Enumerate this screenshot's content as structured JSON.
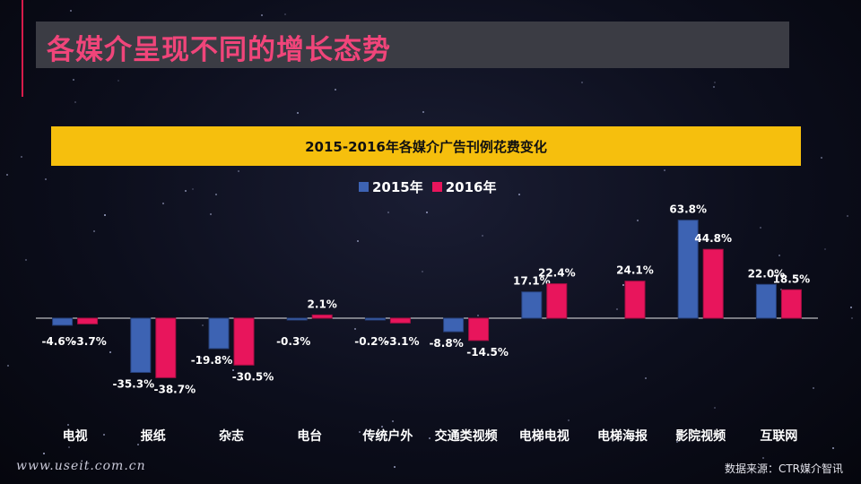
{
  "slide": {
    "title": "各媒介呈现不同的增长态势",
    "watermark": "www.useit.com.cn",
    "source": "数据来源：CTR媒介智讯"
  },
  "colors": {
    "accent": "#f0457a",
    "banner": "#f6bf0d",
    "series_2015": "#3d63b3",
    "series_2016": "#e8155c"
  },
  "chart_data": {
    "type": "bar",
    "title": "2015-2016年各媒介广告刊例花费变化",
    "xlabel": "",
    "ylabel": "",
    "ylim": [
      -40,
      65
    ],
    "grid": false,
    "legend": "top-center",
    "categories": [
      "电视",
      "报纸",
      "杂志",
      "电台",
      "传统户外",
      "交通类视频",
      "电梯电视",
      "电梯海报",
      "影院视频",
      "互联网"
    ],
    "series": [
      {
        "name": "2015年",
        "values": [
          -4.6,
          -35.3,
          -19.8,
          -0.3,
          -0.2,
          -8.8,
          17.1,
          null,
          63.8,
          22.0
        ],
        "labels": [
          "-4.6%",
          "-35.3%",
          "-19.8%",
          "-0.3%",
          "-0.2%",
          "-8.8%",
          "17.1%",
          null,
          "63.8%",
          "22.0%"
        ]
      },
      {
        "name": "2016年",
        "values": [
          -3.7,
          -38.7,
          -30.5,
          2.1,
          -3.1,
          -14.5,
          22.4,
          24.1,
          44.8,
          18.5
        ],
        "labels": [
          "-3.7%",
          "-38.7%",
          "-30.5%",
          "2.1%",
          "-3.1%",
          "-14.5%",
          "22.4%",
          "24.1%",
          "44.8%",
          "18.5%"
        ]
      }
    ]
  }
}
